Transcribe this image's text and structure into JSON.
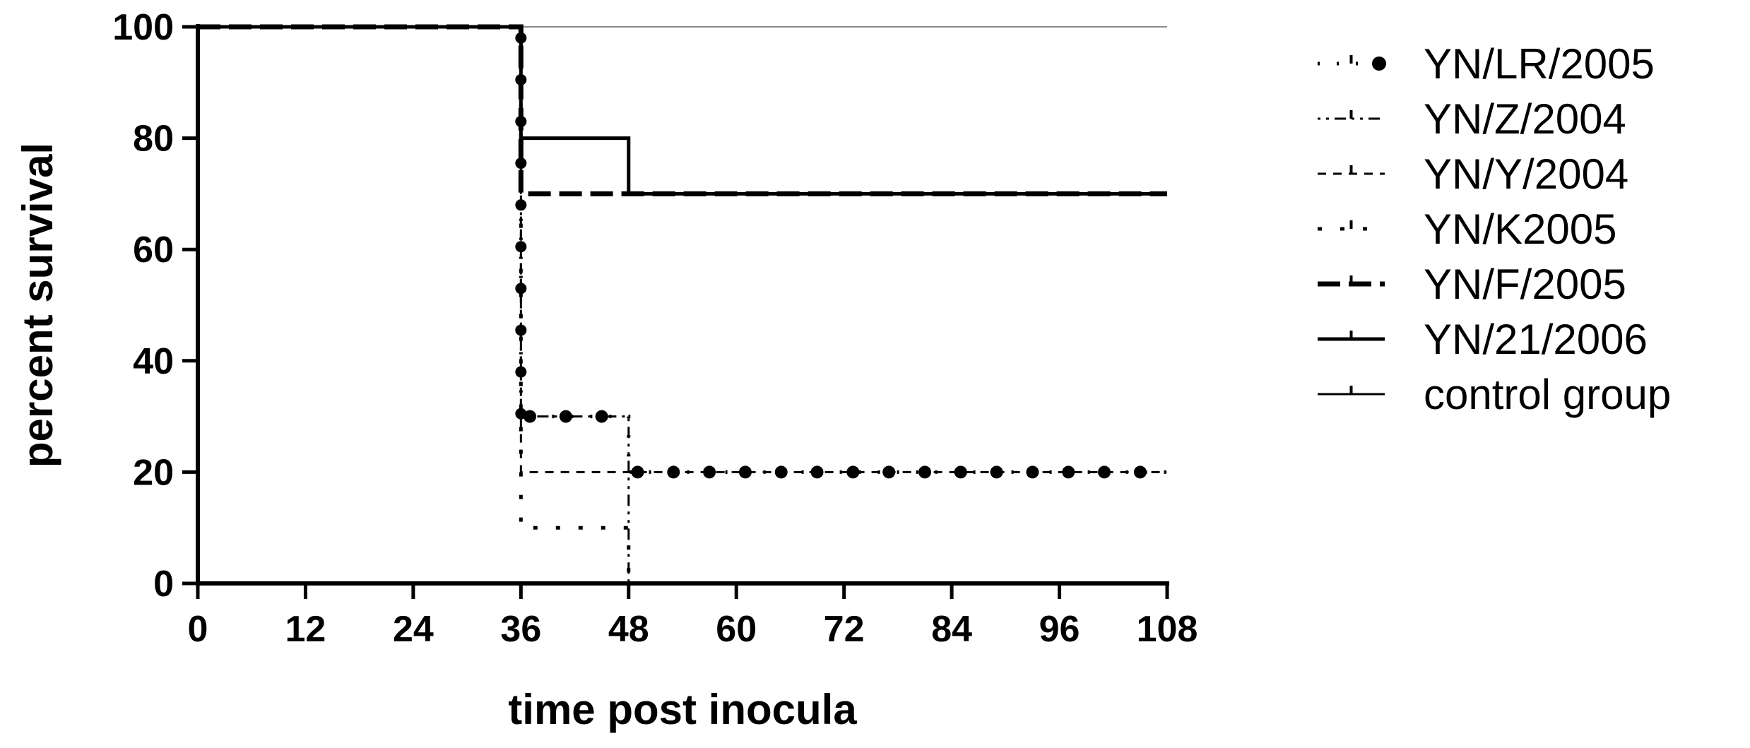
{
  "chart_data": {
    "type": "line",
    "title": "",
    "xlabel": "time post inocula",
    "ylabel": "percent survival",
    "xlim": [
      0,
      108
    ],
    "ylim": [
      0,
      100
    ],
    "xticks": [
      0,
      12,
      24,
      36,
      48,
      60,
      72,
      84,
      96,
      108
    ],
    "yticks": [
      0,
      20,
      40,
      60,
      80,
      100
    ],
    "grid": false,
    "legend_position": "right",
    "series": [
      {
        "name": "YN/LR/2005",
        "step": true,
        "x": [
          0,
          36,
          48,
          108
        ],
        "y": [
          100,
          30,
          20,
          20
        ]
      },
      {
        "name": "YN/Z/2004",
        "step": true,
        "x": [
          0,
          36,
          48
        ],
        "y": [
          100,
          30,
          0
        ]
      },
      {
        "name": "YN/Y/2004",
        "step": true,
        "x": [
          0,
          36,
          108
        ],
        "y": [
          100,
          20,
          20
        ]
      },
      {
        "name": "YN/K2005",
        "step": true,
        "x": [
          0,
          36,
          48
        ],
        "y": [
          100,
          10,
          0
        ]
      },
      {
        "name": "YN/F/2005",
        "step": true,
        "x": [
          0,
          36,
          108
        ],
        "y": [
          100,
          70,
          70
        ]
      },
      {
        "name": "YN/21/2006",
        "step": true,
        "x": [
          0,
          36,
          48,
          108
        ],
        "y": [
          100,
          80,
          70,
          70
        ]
      },
      {
        "name": "control group",
        "step": true,
        "x": [
          0,
          108
        ],
        "y": [
          100,
          100
        ]
      }
    ]
  }
}
